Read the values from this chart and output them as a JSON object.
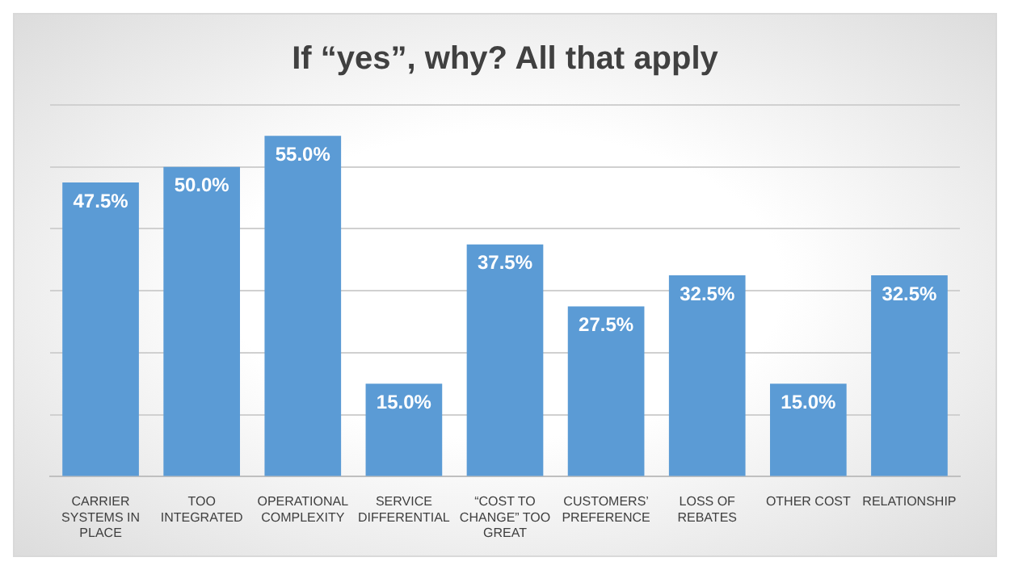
{
  "chart_data": {
    "type": "bar",
    "title": "If “yes”, why? All that apply",
    "categories": [
      "CARRIER SYSTEMS IN PLACE",
      "TOO INTEGRATED",
      "OPERATIONAL COMPLEXITY",
      "SERVICE DIFFERENTIAL",
      "“COST TO CHANGE” TOO GREAT",
      "CUSTOMERS’ PREFERENCE",
      "LOSS OF REBATES",
      "OTHER COST",
      "RELATIONSHIP"
    ],
    "values": [
      47.5,
      50,
      55,
      15,
      37.5,
      27.5,
      32.5,
      15,
      32.5
    ],
    "value_labels": [
      "47.5%",
      "50.0%",
      "55.0%",
      "15.0%",
      "37.5%",
      "27.5%",
      "32.5%",
      "15.0%",
      "32.5%"
    ],
    "color": "#5b9bd5",
    "ylim": [
      0,
      60
    ],
    "yticks": [
      {
        "value": 0,
        "label": null
      },
      {
        "value": 10,
        "label": null
      },
      {
        "value": 20,
        "label": null
      },
      {
        "value": 30,
        "label": null
      },
      {
        "value": 40,
        "label": null
      },
      {
        "value": 50,
        "label": null
      },
      {
        "value": 60,
        "label": null
      }
    ],
    "grid": "y",
    "tick_labels": "x",
    "legend": false
  }
}
